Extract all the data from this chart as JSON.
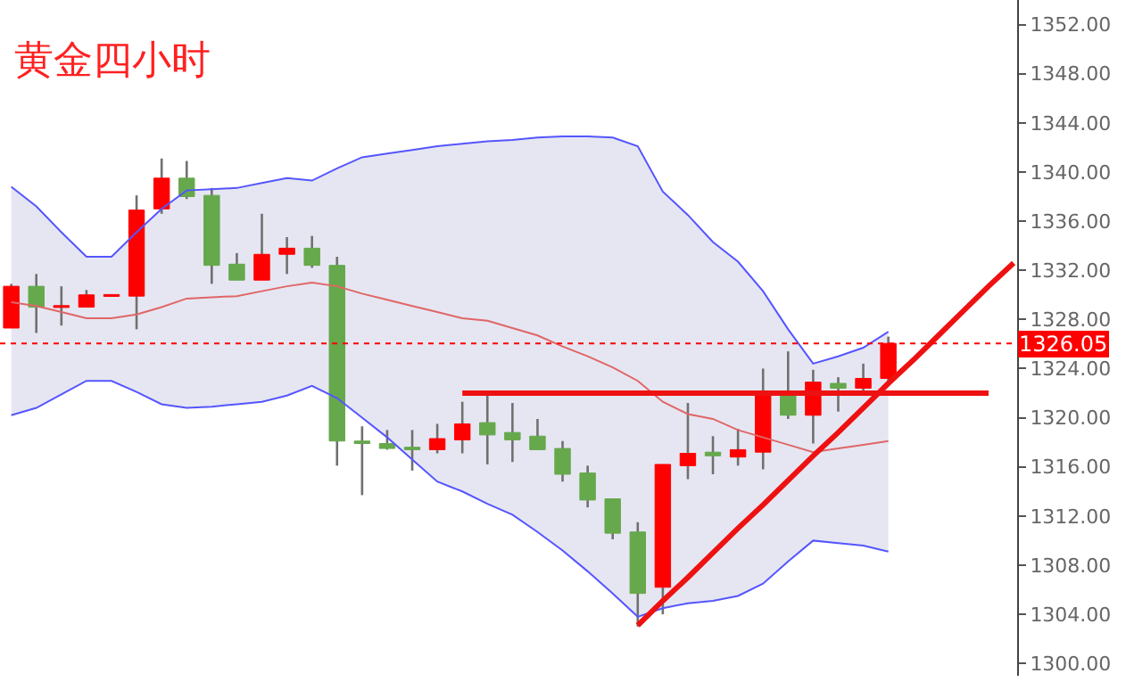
{
  "chart_data": {
    "type": "candlestick",
    "title": "黄金四小时",
    "categories": [
      null,
      null,
      null,
      null,
      null,
      null,
      null,
      null,
      null,
      null,
      null,
      null,
      null,
      null,
      null,
      null,
      null,
      null,
      null,
      null,
      null,
      null,
      null,
      null,
      null,
      null,
      null,
      null,
      null,
      null,
      null,
      null,
      null,
      null,
      null,
      null,
      null,
      null,
      null,
      null,
      null
    ],
    "ohlc": [
      [
        1327.3,
        1330.9,
        1327.3,
        1330.7
      ],
      [
        1330.7,
        1331.7,
        1326.9,
        1329.0
      ],
      [
        1329.0,
        1330.7,
        1327.5,
        1329.1
      ],
      [
        1329.0,
        1330.4,
        1329.0,
        1330.0
      ],
      [
        1329.9,
        1330.0,
        1329.9,
        1330.0
      ],
      [
        1329.9,
        1338.1,
        1327.2,
        1336.9
      ],
      [
        1337.0,
        1341.1,
        1336.6,
        1339.5
      ],
      [
        1339.5,
        1340.9,
        1337.8,
        1338.0
      ],
      [
        1338.1,
        1338.7,
        1330.9,
        1332.4
      ],
      [
        1332.5,
        1333.4,
        1331.2,
        1331.2
      ],
      [
        1331.2,
        1336.6,
        1331.2,
        1333.3
      ],
      [
        1333.3,
        1334.7,
        1331.7,
        1333.8
      ],
      [
        1333.8,
        1334.8,
        1332.2,
        1332.4
      ],
      [
        1332.4,
        1333.1,
        1316.1,
        1318.1
      ],
      [
        1318.1,
        1319.3,
        1313.7,
        1317.9
      ],
      [
        1317.9,
        1319.0,
        1317.4,
        1317.5
      ],
      [
        1317.6,
        1319.0,
        1315.7,
        1317.4
      ],
      [
        1317.4,
        1319.5,
        1317.1,
        1318.3
      ],
      [
        1318.2,
        1321.3,
        1317.1,
        1319.5
      ],
      [
        1319.6,
        1322.0,
        1316.2,
        1318.6
      ],
      [
        1318.8,
        1321.2,
        1316.4,
        1318.2
      ],
      [
        1318.5,
        1319.9,
        1317.4,
        1317.4
      ],
      [
        1317.5,
        1318.1,
        1314.8,
        1315.4
      ],
      [
        1315.5,
        1316.1,
        1312.7,
        1313.3
      ],
      [
        1313.4,
        1313.4,
        1310.1,
        1310.6
      ],
      [
        1310.7,
        1311.5,
        1303.0,
        1305.7
      ],
      [
        1306.2,
        1316.2,
        1304.0,
        1316.2
      ],
      [
        1316.1,
        1321.2,
        1315.0,
        1317.1
      ],
      [
        1317.2,
        1318.5,
        1315.4,
        1316.9
      ],
      [
        1316.8,
        1319.1,
        1316.1,
        1317.4
      ],
      [
        1317.2,
        1324.0,
        1315.8,
        1321.9
      ],
      [
        1322.0,
        1325.4,
        1319.9,
        1320.2
      ],
      [
        1320.2,
        1323.9,
        1317.9,
        1322.9
      ],
      [
        1322.8,
        1323.3,
        1320.5,
        1322.4
      ],
      [
        1322.4,
        1324.4,
        1321.8,
        1323.2
      ],
      [
        1323.2,
        1326.6,
        1322.7,
        1326.05
      ],
      null,
      null,
      null,
      null,
      null
    ],
    "colors": [
      "#ff0000",
      "#66a84c",
      "#ff0000",
      "#ff0000",
      "#ff0000",
      "#ff0000",
      "#ff0000",
      "#66a84c",
      "#66a84c",
      "#66a84c",
      "#ff0000",
      "#ff0000",
      "#66a84c",
      "#66a84c",
      "#66a84c",
      "#66a84c",
      "#66a84c",
      "#ff0000",
      "#ff0000",
      "#66a84c",
      "#66a84c",
      "#66a84c",
      "#66a84c",
      "#66a84c",
      "#66a84c",
      "#66a84c",
      "#ff0000",
      "#ff0000",
      "#66a84c",
      "#ff0000",
      "#ff0000",
      "#66a84c",
      "#ff0000",
      "#66a84c",
      "#ff0000",
      "#ff0000",
      null,
      null,
      null,
      null,
      null
    ],
    "series": [
      {
        "type": "line",
        "color": "#e06666",
        "values": [
          1329.4,
          1329.1,
          1328.6,
          1328.1,
          1328.1,
          1328.4,
          1329.0,
          1329.7,
          1329.8,
          1329.9,
          1330.3,
          1330.7,
          1331.0,
          1330.7,
          1330.1,
          1329.6,
          1329.1,
          1328.6,
          1328.1,
          1327.9,
          1327.3,
          1326.7,
          1325.8,
          1325.0,
          1324.1,
          1323.0,
          1321.3,
          1320.3,
          1319.9,
          1319.0,
          1318.4,
          1317.8,
          1317.2,
          1317.5,
          1317.8,
          1318.1,
          null,
          null,
          null,
          null,
          null
        ],
        "upper": [
          1338.8,
          1337.2,
          1335.1,
          1333.1,
          1333.1,
          1335.1,
          1337.0,
          1338.5,
          1338.6,
          1338.7,
          1339.1,
          1339.5,
          1339.3,
          1340.3,
          1341.2,
          1341.5,
          1341.8,
          1342.1,
          1342.3,
          1342.5,
          1342.6,
          1342.8,
          1342.9,
          1342.9,
          1342.8,
          1342.1,
          1338.4,
          1336.5,
          1334.3,
          1332.7,
          1330.3,
          1327.2,
          1324.4,
          1325.0,
          1325.7,
          1327.0,
          null,
          null,
          null,
          null,
          null
        ],
        "lower": [
          1320.2,
          1320.8,
          1321.9,
          1323.0,
          1323.0,
          1322.1,
          1321.1,
          1320.8,
          1320.9,
          1321.1,
          1321.3,
          1321.8,
          1322.6,
          1321.6,
          1320.0,
          1318.4,
          1316.6,
          1314.8,
          1314.0,
          1313.0,
          1312.1,
          1310.7,
          1309.2,
          1307.5,
          1305.7,
          1303.8,
          1304.5,
          1304.9,
          1305.1,
          1305.5,
          1306.5,
          1308.3,
          1310.0,
          1309.8,
          1309.6,
          1309.1,
          null,
          null,
          null,
          null,
          null
        ]
      },
      {
        "type": "line",
        "color": "#5555ff",
        "values": [
          1338.8,
          1337.2,
          1335.1,
          1333.1,
          1333.1,
          1335.1,
          1337.0,
          1338.5,
          1338.6,
          1338.7,
          1339.1,
          1339.5,
          1339.3,
          1340.3,
          1341.2,
          1341.5,
          1341.8,
          1342.1,
          1342.3,
          1342.5,
          1342.6,
          1342.8,
          1342.9,
          1342.9,
          1342.8,
          1342.1,
          1338.4,
          1336.5,
          1334.3,
          1332.7,
          1330.3,
          1327.2,
          1324.4,
          1325.0,
          1325.7,
          1327.0,
          null,
          null,
          null,
          null,
          null
        ]
      },
      {
        "type": "line",
        "color": "#5555ff",
        "values": [
          1320.2,
          1320.8,
          1321.9,
          1323.0,
          1323.0,
          1322.1,
          1321.1,
          1320.8,
          1320.9,
          1321.1,
          1321.3,
          1321.8,
          1322.6,
          1321.6,
          1320.0,
          1318.4,
          1316.6,
          1314.8,
          1314.0,
          1313.0,
          1312.1,
          1310.7,
          1309.2,
          1307.5,
          1305.7,
          1303.8,
          1304.5,
          1304.9,
          1305.1,
          1305.5,
          1306.5,
          1308.3,
          1310.0,
          1309.8,
          1309.6,
          1309.1,
          null,
          null,
          null,
          null,
          null
        ]
      },
      {
        "type": "line",
        "color": "#ee1111",
        "values": [
          null,
          null,
          null,
          null,
          null,
          null,
          null,
          null,
          null,
          null,
          null,
          null,
          null,
          null,
          null,
          null,
          null,
          null,
          1322.0,
          1322.0,
          1322.0,
          1322.0,
          1322.0,
          1322.0,
          1322.0,
          1322.0,
          1322.0,
          1322.0,
          1322.0,
          1322.0,
          1322.0,
          1322.0,
          1322.0,
          1322.0,
          1322.0,
          1322.0,
          1322.0,
          1322.0,
          1322.0,
          1322.0,
          null
        ]
      },
      {
        "type": "line",
        "color": "#ee1111",
        "values": [
          null,
          null,
          null,
          null,
          null,
          null,
          null,
          null,
          null,
          null,
          null,
          null,
          null,
          null,
          null,
          null,
          null,
          null,
          null,
          null,
          null,
          null,
          null,
          null,
          null,
          1303.1,
          1305.1,
          1307.0,
          1309.0,
          1311.0,
          1312.9,
          1314.9,
          1316.9,
          1318.8,
          1320.8,
          1322.8,
          1324.7,
          1326.7,
          1328.7,
          1330.7,
          1332.6
        ]
      }
    ],
    "ylim": [
      1299.0,
      1354.0
    ],
    "yticks": [
      {
        "value": 1300,
        "label": "1300.00"
      },
      {
        "value": 1304,
        "label": "1304.00"
      },
      {
        "value": 1308,
        "label": "1308.00"
      },
      {
        "value": 1312,
        "label": "1312.00"
      },
      {
        "value": 1316,
        "label": "1316.00"
      },
      {
        "value": 1320,
        "label": "1320.00"
      },
      {
        "value": 1324,
        "label": "1324.00"
      },
      {
        "value": 1328,
        "label": "1328.00"
      },
      {
        "value": 1332,
        "label": "1332.00"
      },
      {
        "value": 1336,
        "label": "1336.00"
      },
      {
        "value": 1340,
        "label": "1340.00"
      },
      {
        "value": 1344,
        "label": "1344.00"
      },
      {
        "value": 1348,
        "label": "1348.00"
      },
      {
        "value": 1352,
        "label": "1352.00"
      }
    ],
    "ref_lines": [
      {
        "axis": "y",
        "value": 1326.05,
        "label": "1326.05",
        "color": "#ff0000",
        "line_style": "dotted"
      }
    ],
    "tick_labels": "y",
    "marker": "none"
  }
}
